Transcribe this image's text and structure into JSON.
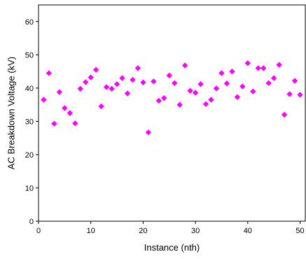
{
  "chart_data": {
    "type": "scatter",
    "xlabel": "Instance (nth)",
    "ylabel": "AC Breakdown Voltage (kV)",
    "xlim": [
      0,
      51
    ],
    "ylim": [
      0,
      65
    ],
    "x_ticks": [
      0,
      10,
      20,
      30,
      40,
      50
    ],
    "y_ticks": [
      0,
      10,
      20,
      30,
      40,
      50,
      60
    ],
    "grid": false,
    "legend": "none",
    "marker": "diamond",
    "marker_color": "#FF00FF",
    "series": [
      {
        "points": [
          [
            1,
            36.5
          ],
          [
            2,
            44.5
          ],
          [
            3,
            29.3
          ],
          [
            4,
            38.8
          ],
          [
            5,
            34.0
          ],
          [
            6,
            32.5
          ],
          [
            7,
            29.4
          ],
          [
            8,
            39.8
          ],
          [
            9,
            41.8
          ],
          [
            10,
            43.2
          ],
          [
            11,
            45.5
          ],
          [
            12,
            34.5
          ],
          [
            13,
            40.3
          ],
          [
            14,
            39.8
          ],
          [
            15,
            41.2
          ],
          [
            16,
            43.0
          ],
          [
            17,
            38.4
          ],
          [
            18,
            42.5
          ],
          [
            19,
            46.0
          ],
          [
            20,
            41.7
          ],
          [
            21,
            26.7
          ],
          [
            22,
            42.0
          ],
          [
            23,
            36.2
          ],
          [
            24,
            37.0
          ],
          [
            25,
            43.8
          ],
          [
            26,
            41.5
          ],
          [
            27,
            35.0
          ],
          [
            28,
            46.8
          ],
          [
            29,
            39.2
          ],
          [
            30,
            38.6
          ],
          [
            31,
            41.2
          ],
          [
            32,
            35.2
          ],
          [
            33,
            36.5
          ],
          [
            34,
            39.9
          ],
          [
            35,
            44.5
          ],
          [
            36,
            41.4
          ],
          [
            37,
            45.0
          ],
          [
            38,
            37.3
          ],
          [
            39,
            40.5
          ],
          [
            40,
            47.5
          ],
          [
            41,
            39.0
          ],
          [
            42,
            46.0
          ],
          [
            43,
            46.0
          ],
          [
            44,
            41.5
          ],
          [
            45,
            43.0
          ],
          [
            46,
            47.0
          ],
          [
            47,
            32.0
          ],
          [
            48,
            38.2
          ],
          [
            49,
            42.2
          ],
          [
            50,
            38.0
          ]
        ]
      }
    ]
  }
}
